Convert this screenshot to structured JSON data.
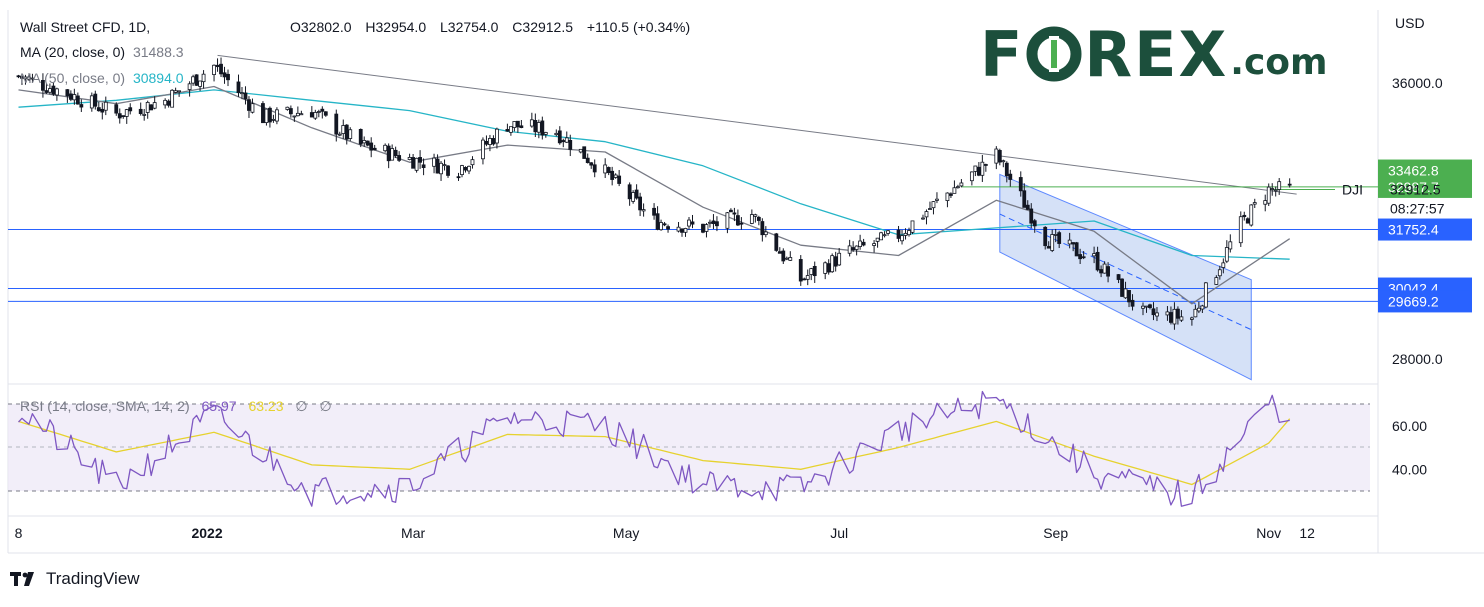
{
  "header": {
    "symbol": "Wall Street CFD, 1D,",
    "ohlc": {
      "open": "O32802.0",
      "high": "H32954.0",
      "low": "L32754.0",
      "close": "C32912.5",
      "change": "+110.5 (+0.34%)"
    },
    "ma20": {
      "label": "MA (20, close, 0)",
      "value": "31488.3",
      "color": "#787b86"
    },
    "ma50": {
      "label": "MA (50, close, 0)",
      "value": "30894.0",
      "color": "#26b5c7"
    }
  },
  "rsi_legend": {
    "label": "RSI (14, close, SMA, 14, 2)",
    "value": "65.97",
    "sma_value": "63.23",
    "na1": "∅",
    "na2": "∅",
    "color": "#7e57c2",
    "sma_color": "#e6d22e"
  },
  "currency": "USD",
  "watermark": {
    "main": "F",
    "main2": "REX",
    "suffix": ".com",
    "color": "#1c4f3c"
  },
  "branding": {
    "name": "TradingView"
  },
  "colors": {
    "up": "#ffffff",
    "down": "#131722",
    "ma20": "#787b86",
    "ma50": "#26b5c7",
    "rsi": "#7e57c2",
    "rsi_sma": "#e6d22e",
    "resistance": "#4caf50",
    "support": "#2962ff",
    "trend": "#787b86",
    "channel_fill": "#c7d7f5",
    "channel_line": "#2962ff",
    "price_tag": "#4caf50",
    "support_tag": "#2962ff"
  },
  "chart_data": [
    {
      "type": "line",
      "title": "Wall Street CFD, 1D",
      "x_labels": [
        "8",
        "2022",
        "Mar",
        "May",
        "Jul",
        "Sep",
        "Nov",
        "12"
      ],
      "y_ticks": [
        "36000.0",
        "28000.0"
      ],
      "ylim": [
        26500,
        38500
      ],
      "xlim": [
        "2021-11-05",
        "2022-11-30"
      ],
      "series": [
        {
          "name": "Wall Street CFD",
          "kind": "candlestick-close",
          "x": [
            "2021-11-08",
            "2021-11-22",
            "2021-12-06",
            "2021-12-20",
            "2022-01-03",
            "2022-01-17",
            "2022-01-31",
            "2022-02-14",
            "2022-02-28",
            "2022-03-14",
            "2022-03-28",
            "2022-04-11",
            "2022-04-25",
            "2022-05-09",
            "2022-05-23",
            "2022-06-06",
            "2022-06-20",
            "2022-07-04",
            "2022-07-18",
            "2022-08-01",
            "2022-08-15",
            "2022-08-29",
            "2022-09-12",
            "2022-09-26",
            "2022-10-10",
            "2022-10-24",
            "2022-11-01",
            "2022-11-07"
          ],
          "y": [
            36200,
            35700,
            35100,
            35500,
            36500,
            35000,
            35200,
            34200,
            33800,
            33500,
            34800,
            34600,
            33400,
            32000,
            31800,
            32200,
            30300,
            31100,
            31600,
            32800,
            33900,
            31500,
            30900,
            29300,
            29200,
            31900,
            32900,
            32912.5
          ]
        },
        {
          "name": "MA (20, close, 0)",
          "x": [
            "2021-11-08",
            "2021-12-06",
            "2022-01-03",
            "2022-01-31",
            "2022-02-28",
            "2022-03-28",
            "2022-04-25",
            "2022-05-23",
            "2022-06-20",
            "2022-07-18",
            "2022-08-15",
            "2022-09-12",
            "2022-10-10",
            "2022-11-07"
          ],
          "y": [
            35800,
            35400,
            35900,
            34700,
            33700,
            34200,
            34000,
            32400,
            31300,
            31000,
            32600,
            31700,
            29600,
            31488.3
          ]
        },
        {
          "name": "MA (50, close, 0)",
          "x": [
            "2021-11-08",
            "2021-12-06",
            "2022-01-03",
            "2022-01-31",
            "2022-02-28",
            "2022-03-28",
            "2022-04-25",
            "2022-05-23",
            "2022-06-20",
            "2022-07-18",
            "2022-08-15",
            "2022-09-12",
            "2022-10-10",
            "2022-11-07"
          ],
          "y": [
            35300,
            35500,
            35800,
            35500,
            35200,
            34600,
            34300,
            33600,
            32500,
            31600,
            31800,
            32000,
            31000,
            30894.0
          ]
        }
      ],
      "horizontal_levels": [
        {
          "label": "33462.8",
          "value": 33462.8,
          "kind": "price-tag"
        },
        {
          "label": "32987.7",
          "value": 32987.7,
          "kind": "resistance"
        },
        {
          "label": "31752.4",
          "value": 31752.4,
          "kind": "support"
        },
        {
          "label": "30042.4",
          "value": 30042.4,
          "kind": "support"
        },
        {
          "label": "29669.2",
          "value": 29669.2,
          "kind": "support"
        }
      ],
      "last_price": {
        "symbol": "DJI",
        "value": "32912.5",
        "countdown": "08:27:57"
      }
    },
    {
      "type": "line",
      "title": "RSI (14, close, SMA, 14, 2)",
      "y_ticks": [
        "60.00",
        "40.00"
      ],
      "ylim": [
        20,
        80
      ],
      "bands": [
        30,
        70
      ],
      "series": [
        {
          "name": "RSI",
          "x": [
            "2021-11-08",
            "2021-12-06",
            "2022-01-03",
            "2022-01-31",
            "2022-02-28",
            "2022-03-28",
            "2022-04-25",
            "2022-05-23",
            "2022-06-20",
            "2022-07-18",
            "2022-08-15",
            "2022-09-12",
            "2022-10-10",
            "2022-11-01",
            "2022-11-07"
          ],
          "y": [
            68,
            32,
            65,
            30,
            32,
            64,
            60,
            33,
            31,
            58,
            72,
            38,
            27,
            70,
            65.97
          ]
        },
        {
          "name": "RSI SMA",
          "x": [
            "2021-11-08",
            "2021-12-06",
            "2022-01-03",
            "2022-01-31",
            "2022-02-28",
            "2022-03-28",
            "2022-04-25",
            "2022-05-23",
            "2022-06-20",
            "2022-07-18",
            "2022-08-15",
            "2022-09-12",
            "2022-10-10",
            "2022-11-01",
            "2022-11-07"
          ],
          "y": [
            62,
            48,
            57,
            42,
            40,
            56,
            55,
            44,
            40,
            50,
            62,
            46,
            33,
            52,
            63.23
          ]
        }
      ]
    }
  ]
}
